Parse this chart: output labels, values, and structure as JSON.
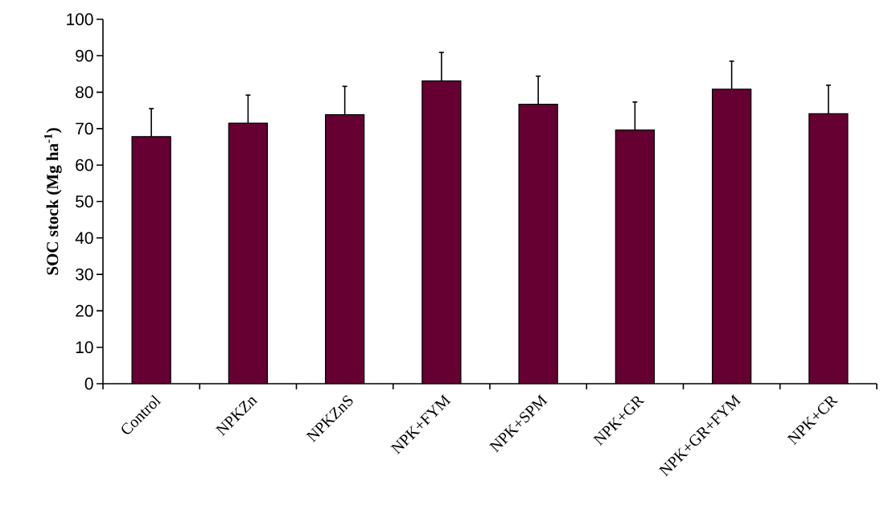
{
  "chart_data": {
    "type": "bar",
    "ylabel": "SOC stock (Mg ha$^{-1}$)",
    "categories": [
      "Control",
      "NPKZn",
      "NPKZnS",
      "NPK+FYM",
      "NPK+SPM",
      "NPK+GR",
      "NPK+GR+FYM",
      "NPK+CR"
    ],
    "values": [
      67.8,
      71.5,
      73.8,
      83.1,
      76.7,
      69.6,
      80.8,
      74.1
    ],
    "errors": [
      7.7,
      7.7,
      7.8,
      7.8,
      7.7,
      7.7,
      7.7,
      7.8
    ],
    "color": "#660033",
    "ylim": [
      0,
      100
    ],
    "yticks": [
      0,
      10,
      20,
      30,
      40,
      50,
      60,
      70,
      80,
      90,
      100
    ]
  }
}
